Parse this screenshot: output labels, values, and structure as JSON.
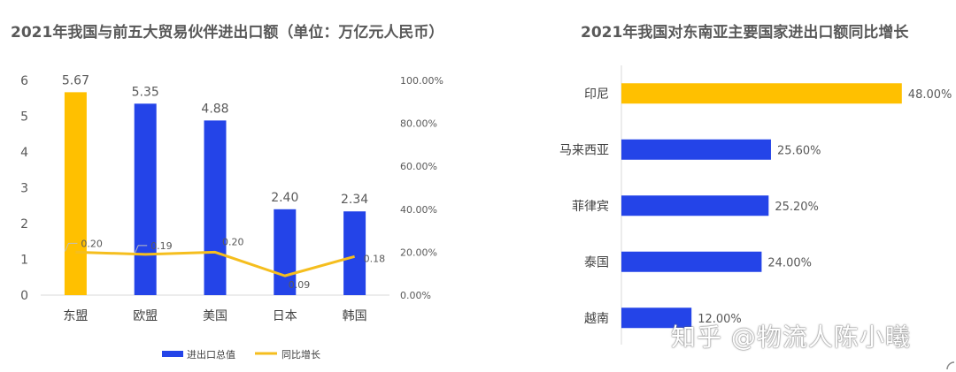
{
  "charts": {
    "left_title": "2021年我国与前五大贸易伙伴进出口额（单位：万亿元人民币）",
    "right_title": "2021年我国对东南亚主要国家进出口额同比增长"
  },
  "watermark": "知乎 @物流人陈小曦",
  "chart_data": [
    {
      "type": "bar",
      "title": "2021年我国与前五大贸易伙伴进出口额（单位：万亿元人民币）",
      "categories": [
        "东盟",
        "欧盟",
        "美国",
        "日本",
        "韩国"
      ],
      "series": [
        {
          "name": "进出口总值",
          "type": "bar",
          "axis": "left",
          "values": [
            5.67,
            5.35,
            4.88,
            2.4,
            2.34
          ],
          "labels": [
            "5.67",
            "5.35",
            "4.88",
            "2.40",
            "2.34"
          ]
        },
        {
          "name": "同比增长",
          "type": "line",
          "axis": "right",
          "values": [
            0.2,
            0.19,
            0.2,
            0.09,
            0.18
          ],
          "labels": [
            "0.20",
            "0.19",
            "0.20",
            "0.09",
            "0.18"
          ]
        }
      ],
      "y_left": {
        "min": 0,
        "max": 6,
        "ticks": [
          "0",
          "1",
          "2",
          "3",
          "4",
          "5",
          "6"
        ]
      },
      "y_right": {
        "min": 0,
        "max": 1,
        "ticks": [
          "0.00%",
          "20.00%",
          "40.00%",
          "60.00%",
          "80.00%",
          "100.00%"
        ]
      },
      "highlight_index": 0,
      "colors": {
        "bar": "#2444E8",
        "highlight": "#FFC000",
        "line": "#F5BE1E"
      },
      "legend_position": "bottom"
    },
    {
      "type": "bar",
      "orientation": "horizontal",
      "title": "2021年我国对东南亚主要国家进出口额同比增长",
      "categories": [
        "印尼",
        "马来西亚",
        "菲律宾",
        "泰国",
        "越南"
      ],
      "values": [
        48.0,
        25.6,
        25.2,
        24.0,
        12.0
      ],
      "labels": [
        "48.00%",
        "25.60%",
        "25.20%",
        "24.00%",
        "12.00%"
      ],
      "unit": "%",
      "highlight_index": 0,
      "colors": {
        "bar": "#2444E8",
        "highlight": "#FFC000"
      }
    }
  ]
}
